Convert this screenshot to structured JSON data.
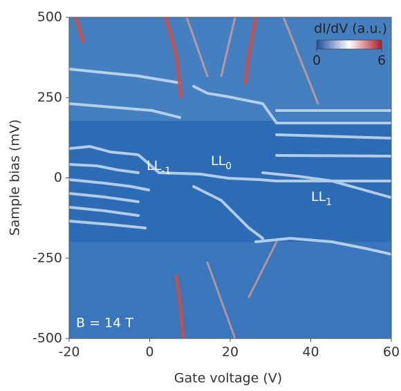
{
  "chart_data": {
    "type": "heatmap",
    "x_label": "Gate voltage (V)",
    "y_label": "Sample bias (mV)",
    "xlim": [
      -20,
      60
    ],
    "xticks": [
      -20,
      0,
      20,
      40,
      60
    ],
    "ylim": [
      -500,
      500
    ],
    "yticks": [
      -500,
      -250,
      0,
      250,
      500
    ],
    "colorbar": {
      "label": "dI/dV (a.u.)",
      "lim": [
        0,
        6
      ],
      "ticks": [
        0,
        6
      ],
      "colors": [
        "#1d4f9e",
        "#ffffff",
        "#b01b2c"
      ]
    },
    "annotations": [
      {
        "text": "LL",
        "sub": "-1"
      },
      {
        "text": "LL",
        "sub": "0"
      },
      {
        "text": "LL",
        "sub": "1"
      }
    ],
    "field_label": "B = 14 T"
  }
}
